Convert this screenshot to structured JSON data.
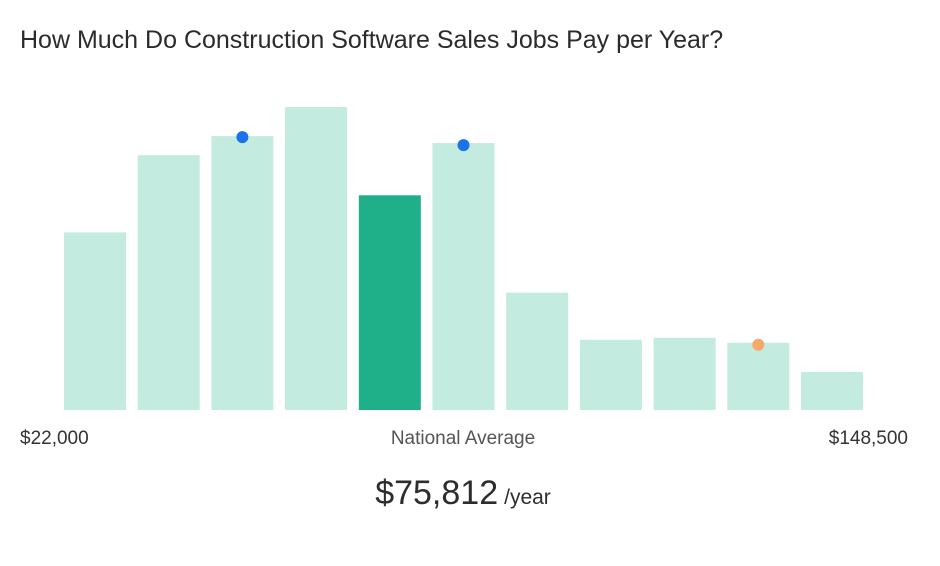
{
  "chart_data": {
    "type": "bar",
    "title": "How Much Do Construction Software Sales Jobs Pay per Year?",
    "x_range_labels": {
      "min": "$22,000",
      "max": "$148,500"
    },
    "series": [
      {
        "values": [
          177,
          254,
          273,
          302,
          214,
          266,
          117,
          70,
          72,
          67,
          38
        ]
      }
    ],
    "highlight_index": 4,
    "markers": [
      {
        "bin": 2,
        "value": 272,
        "color": "#1a73e8"
      },
      {
        "bin": 5,
        "value": 264,
        "color": "#1a73e8"
      },
      {
        "bin": 9,
        "value": 65,
        "color": "#f6a96b"
      }
    ],
    "ylim": [
      0,
      302
    ],
    "colors": {
      "bar": "#c3ebe0",
      "highlight": "#1fb08a"
    }
  },
  "labels": {
    "title": "How Much Do Construction Software Sales Jobs Pay per Year?",
    "min": "$22,000",
    "max": "$148,500",
    "middle": "National Average",
    "average_value": "$75,812",
    "average_unit": "/year"
  }
}
